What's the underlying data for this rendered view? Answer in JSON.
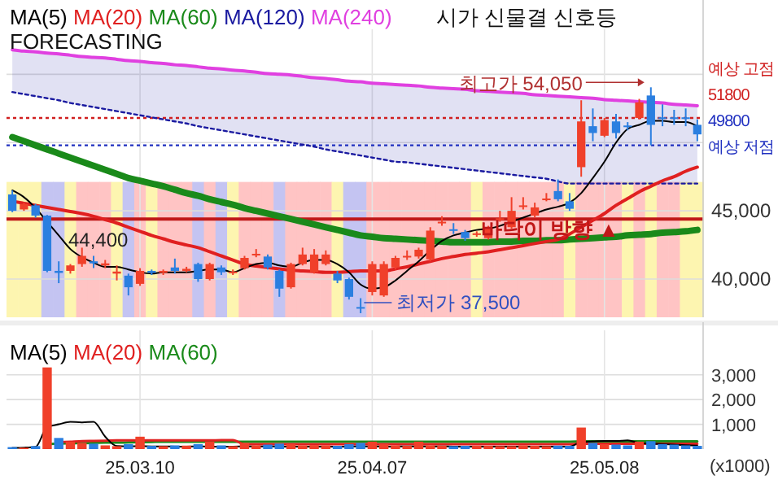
{
  "chart_data": [
    {
      "type": "candlestick",
      "legend": "top",
      "grid": true,
      "tick_labels": "y",
      "categories": [
        null,
        null,
        null,
        null,
        null,
        null,
        null,
        null,
        null,
        null,
        null,
        "25.03.10",
        null,
        null,
        null,
        null,
        null,
        null,
        null,
        null,
        null,
        null,
        null,
        null,
        null,
        null,
        null,
        null,
        null,
        null,
        null,
        "25.04.07",
        null,
        null,
        null,
        null,
        null,
        null,
        null,
        null,
        null,
        null,
        null,
        null,
        null,
        null,
        null,
        null,
        null,
        null,
        null,
        "25.05.08",
        null,
        null,
        null,
        null,
        null,
        null,
        null,
        null
      ],
      "ylim": [
        37200,
        58300
      ],
      "yticks": [
        {
          "value": 40000,
          "label": "40,000"
        },
        {
          "value": 45000,
          "label": "45,000"
        },
        {
          "value": 50000,
          "label": null
        },
        {
          "value": 55000,
          "label": null
        }
      ],
      "ohlc": [
        [
          46200,
          46500,
          44900,
          45000
        ],
        [
          45100,
          45600,
          45000,
          45500
        ],
        [
          45400,
          45500,
          44500,
          44650
        ],
        [
          44650,
          44700,
          40500,
          40600
        ],
        [
          40600,
          41300,
          39700,
          40450
        ],
        [
          40600,
          41100,
          40400,
          41000
        ],
        [
          41100,
          42300,
          40900,
          41700
        ],
        [
          41300,
          41700,
          40800,
          41150
        ],
        [
          41000,
          41400,
          40800,
          41150
        ],
        [
          40400,
          41000,
          39900,
          40550
        ],
        [
          40250,
          40400,
          38800,
          39400
        ],
        [
          39650,
          40800,
          39500,
          40600
        ],
        [
          40600,
          40700,
          40300,
          40450
        ],
        [
          40450,
          40700,
          40300,
          40600
        ],
        [
          40850,
          41500,
          40400,
          40600
        ],
        [
          40600,
          40900,
          40500,
          40750
        ],
        [
          41100,
          41200,
          39800,
          40000
        ],
        [
          40000,
          41200,
          39900,
          41100
        ],
        [
          40850,
          41000,
          40300,
          40500
        ],
        [
          40450,
          40700,
          40300,
          40550
        ],
        [
          40800,
          41700,
          40700,
          41550
        ],
        [
          41750,
          42200,
          41600,
          41850
        ],
        [
          41650,
          41800,
          40700,
          40850
        ],
        [
          40600,
          40700,
          38700,
          39300
        ],
        [
          39400,
          41200,
          39300,
          41100
        ],
        [
          41100,
          42300,
          41000,
          41800
        ],
        [
          40500,
          42200,
          40400,
          41800
        ],
        [
          41100,
          42100,
          41000,
          41800
        ],
        [
          40400,
          40600,
          39700,
          39900
        ],
        [
          40000,
          40100,
          38500,
          38700
        ],
        [
          37950,
          38600,
          37500,
          37850
        ],
        [
          39050,
          41300,
          38800,
          41100
        ],
        [
          38800,
          41300,
          38700,
          41100
        ],
        [
          40850,
          41700,
          40700,
          41550
        ],
        [
          41600,
          42100,
          41400,
          41700
        ],
        [
          41650,
          42300,
          41500,
          42150
        ],
        [
          41450,
          43800,
          41300,
          43550
        ],
        [
          44100,
          44600,
          43900,
          44200
        ],
        [
          43650,
          44100,
          43300,
          43550
        ],
        [
          43450,
          43600,
          42800,
          43000
        ],
        [
          43250,
          43500,
          43100,
          43350
        ],
        [
          43000,
          43900,
          42900,
          43700
        ],
        [
          44350,
          45000,
          44200,
          44450
        ],
        [
          43800,
          46000,
          43700,
          45000
        ],
        [
          45300,
          46000,
          45100,
          45400
        ],
        [
          44650,
          45600,
          44500,
          45250
        ],
        [
          45800,
          46300,
          45700,
          45900
        ],
        [
          46450,
          47300,
          45700,
          45850
        ],
        [
          45700,
          46300,
          45000,
          45150
        ],
        [
          48200,
          53100,
          47500,
          51550
        ],
        [
          51200,
          52500,
          50100,
          50700
        ],
        [
          50500,
          51800,
          50400,
          51650
        ],
        [
          51550,
          52100,
          50300,
          50700
        ],
        [
          51250,
          51500,
          50900,
          51150
        ],
        [
          51800,
          53200,
          51700,
          52950
        ],
        [
          53450,
          54050,
          49800,
          51300
        ],
        [
          51850,
          52800,
          51200,
          51750
        ],
        [
          51850,
          52400,
          51300,
          51750
        ],
        [
          51850,
          52500,
          51200,
          51750
        ],
        [
          51300,
          51700,
          50100,
          50600
        ]
      ],
      "colors": [
        "#2b7fe0",
        "#f0402a",
        "#2b7fe0",
        "#2b7fe0",
        "#2b7fe0",
        "#f0402a",
        "#f0402a",
        "#2b7fe0",
        "#f0402a",
        "#f0402a",
        "#2b7fe0",
        "#f0402a",
        "#2b7fe0",
        "#f0402a",
        "#2b7fe0",
        "#f0402a",
        "#2b7fe0",
        "#f0402a",
        "#2b7fe0",
        "#f0402a",
        "#f0402a",
        "#f0402a",
        "#2b7fe0",
        "#2b7fe0",
        "#f0402a",
        "#f0402a",
        "#f0402a",
        "#f0402a",
        "#2b7fe0",
        "#2b7fe0",
        "#2b7fe0",
        "#f0402a",
        "#f0402a",
        "#f0402a",
        "#f0402a",
        "#f0402a",
        "#f0402a",
        "#f0402a",
        "#2b7fe0",
        "#2b7fe0",
        "#f0402a",
        "#f0402a",
        "#f0402a",
        "#f0402a",
        "#f0402a",
        "#f0402a",
        "#f0402a",
        "#2b7fe0",
        "#2b7fe0",
        "#f0402a",
        "#2b7fe0",
        "#f0402a",
        "#2b7fe0",
        "#2b7fe0",
        "#f0402a",
        "#2b7fe0",
        "#2b7fe0",
        "#2b7fe0",
        "#2b7fe0",
        "#2b7fe0"
      ],
      "series": [
        {
          "name": "MA(5)",
          "type": "line",
          "color": "#000000",
          "values": [
            46500,
            46000,
            45200,
            44200,
            43200,
            42200,
            41600,
            41200,
            40900,
            40900,
            40700,
            40500,
            40400,
            40500,
            40500,
            40500,
            40600,
            40700,
            40700,
            40500,
            40800,
            41100,
            41200,
            41000,
            40900,
            41200,
            41400,
            41400,
            41100,
            40500,
            39600,
            39300,
            39400,
            39900,
            40600,
            41300,
            42100,
            42800,
            43200,
            43400,
            43600,
            43700,
            43900,
            44200,
            44500,
            44800,
            45100,
            45300,
            45600,
            46300,
            47400,
            48600,
            50000,
            51000,
            51300,
            51600,
            51600,
            51500,
            51500,
            51200
          ]
        },
        {
          "name": "MA(20)",
          "type": "line",
          "color": "#e02020",
          "values": [
            45700,
            45550,
            45400,
            45250,
            45100,
            44950,
            44800,
            44600,
            44350,
            44100,
            43800,
            43500,
            43200,
            42950,
            42700,
            42500,
            42300,
            42000,
            41700,
            41400,
            41100,
            40950,
            40850,
            40750,
            40650,
            40600,
            40550,
            40500,
            40500,
            40550,
            40600,
            40600,
            40600,
            40750,
            40900,
            41100,
            41300,
            41500,
            41650,
            41800,
            41900,
            42000,
            42150,
            42300,
            42450,
            42600,
            42750,
            42900,
            43300,
            43800,
            44300,
            44800,
            45400,
            45900,
            46400,
            46800,
            47200,
            47500,
            47900,
            48200
          ]
        },
        {
          "name": "MA(60)",
          "type": "line",
          "color": "#1a8a1a",
          "values": [
            50400,
            50100,
            49800,
            49500,
            49200,
            48900,
            48600,
            48300,
            48000,
            47700,
            47400,
            47200,
            47000,
            46800,
            46550,
            46300,
            46100,
            45850,
            45650,
            45450,
            45200,
            45000,
            44800,
            44600,
            44400,
            44200,
            44000,
            43800,
            43600,
            43400,
            43200,
            43100,
            43000,
            42950,
            42900,
            42850,
            42800,
            42750,
            42700,
            42700,
            42700,
            42700,
            42750,
            42750,
            42800,
            42800,
            42850,
            42850,
            42900,
            42950,
            43000,
            43050,
            43100,
            43200,
            43250,
            43300,
            43400,
            43450,
            43500,
            43600
          ]
        },
        {
          "name": "MA(120)",
          "type": "line",
          "color": "#1a1aa0",
          "line_style": "dotted",
          "values": [
            53700,
            53550,
            53400,
            53250,
            53100,
            52900,
            52750,
            52600,
            52450,
            52300,
            52150,
            52000,
            51850,
            51700,
            51550,
            51400,
            51200,
            51050,
            50900,
            50750,
            50600,
            50450,
            50300,
            50150,
            50000,
            49850,
            49700,
            49500,
            49350,
            49200,
            49050,
            48900,
            48750,
            48600,
            48550,
            48450,
            48350,
            48250,
            48150,
            48050,
            47950,
            47850,
            47750,
            47650,
            47550,
            47450,
            47350,
            47150,
            47000,
            47000,
            47000,
            47000,
            47000,
            47000,
            47000,
            47000,
            47000,
            47000,
            47000,
            47000
          ],
          "lower": [
            53700,
            53550,
            53400,
            53250,
            53100,
            52900,
            52750,
            52600,
            52450,
            52300,
            52150,
            52000,
            51850,
            51700,
            51550,
            51400,
            51200,
            51050,
            50900,
            50750,
            50600,
            50450,
            50300,
            50150,
            50000,
            49850,
            49700,
            49500,
            49350,
            49200,
            49050,
            48900,
            48750,
            48600,
            48550,
            48450,
            48350,
            48250,
            48150,
            48050,
            47950,
            47850,
            47750,
            47650,
            47550,
            47450,
            47350,
            47150,
            47000,
            47000,
            47000,
            47000,
            47000,
            47000,
            47000,
            47000,
            47000,
            47000,
            47000,
            47000
          ],
          "upper": [
            56800,
            56700,
            56650,
            56550,
            56500,
            56400,
            56300,
            56250,
            56200,
            56100,
            56000,
            55950,
            55850,
            55800,
            55700,
            55650,
            55550,
            55450,
            55400,
            55300,
            55250,
            55150,
            55050,
            55000,
            54950,
            54850,
            54750,
            54700,
            54600,
            54500,
            54450,
            54350,
            54300,
            54250,
            54200,
            54150,
            54050,
            54000,
            53950,
            53900,
            53800,
            53750,
            53700,
            53650,
            53600,
            53500,
            53450,
            53400,
            53350,
            53300,
            53250,
            53150,
            53100,
            53050,
            53000,
            52950,
            52900,
            52800,
            52750,
            52700
          ]
        },
        {
          "name": "MA(240)",
          "type": "line",
          "color": "#e040e0",
          "values": [
            56800,
            56700,
            56650,
            56550,
            56500,
            56400,
            56300,
            56250,
            56200,
            56100,
            56000,
            55950,
            55850,
            55800,
            55700,
            55650,
            55550,
            55450,
            55400,
            55300,
            55250,
            55150,
            55050,
            55000,
            54950,
            54850,
            54750,
            54700,
            54600,
            54500,
            54450,
            54350,
            54300,
            54250,
            54200,
            54150,
            54050,
            54000,
            53950,
            53900,
            53800,
            53750,
            53700,
            53650,
            53600,
            53500,
            53450,
            53400,
            53350,
            53300,
            53250,
            53150,
            53100,
            53050,
            53000,
            52950,
            52900,
            52800,
            52750,
            52700
          ]
        }
      ],
      "ref_lines": [
        {
          "axis": "y",
          "value": 51800,
          "label": "예상 고점\n51800",
          "color": "#d02020",
          "line_style": "dotted"
        },
        {
          "axis": "y",
          "value": 49800,
          "label": "49800\n예상 저점",
          "color": "#2030c0",
          "line_style": "dotted"
        },
        {
          "axis": "y",
          "value": 44400,
          "label": "44,400",
          "color": "#c01818",
          "line_style": "solid"
        }
      ],
      "annotations": [
        "시가 신물결 신호등",
        "FORECASTING",
        "바닥이 방향 ▲",
        "최저가 37,500",
        {
          "text": "최고가 54,050",
          "y": 54050
        }
      ]
    },
    {
      "type": "bar",
      "legend": "top left",
      "grid": true,
      "ylabel": "(x1000)",
      "categories": [
        null,
        null,
        null,
        null,
        null,
        null,
        null,
        null,
        null,
        null,
        null,
        "25.03.10",
        null,
        null,
        null,
        null,
        null,
        null,
        null,
        null,
        null,
        null,
        null,
        null,
        null,
        null,
        null,
        null,
        null,
        null,
        null,
        "25.04.07",
        null,
        null,
        null,
        null,
        null,
        null,
        null,
        null,
        null,
        null,
        null,
        null,
        null,
        null,
        null,
        null,
        null,
        null,
        null,
        "25.05.08",
        null,
        null,
        null,
        null,
        null,
        null,
        null,
        null
      ],
      "ylim": [
        0,
        4800
      ],
      "yticks": [
        {
          "value": 1000,
          "label": "1,000"
        },
        {
          "value": 2000,
          "label": "2,000"
        },
        {
          "value": 3000,
          "label": "3,000"
        }
      ],
      "series": [
        {
          "type": "bar",
          "values": [
            80,
            60,
            120,
            3300,
            450,
            300,
            250,
            220,
            150,
            120,
            200,
            500,
            130,
            120,
            150,
            140,
            200,
            300,
            150,
            120,
            250,
            150,
            180,
            220,
            200,
            150,
            160,
            150,
            130,
            200,
            250,
            300,
            200,
            150,
            130,
            300,
            150,
            140,
            120,
            130,
            140,
            130,
            120,
            120,
            150,
            130,
            120,
            140,
            130,
            870,
            250,
            200,
            180,
            150,
            300,
            320,
            200,
            180,
            150,
            130
          ],
          "colors": [
            "#2b7fe0",
            "#f0402a",
            "#2b7fe0",
            "#f0402a",
            "#2b7fe0",
            "#f0402a",
            "#f0402a",
            "#2b7fe0",
            "#f0402a",
            "#f0402a",
            "#2b7fe0",
            "#f0402a",
            "#2b7fe0",
            "#f0402a",
            "#2b7fe0",
            "#f0402a",
            "#2b7fe0",
            "#f0402a",
            "#2b7fe0",
            "#f0402a",
            "#f0402a",
            "#f0402a",
            "#2b7fe0",
            "#2b7fe0",
            "#f0402a",
            "#f0402a",
            "#f0402a",
            "#f0402a",
            "#2b7fe0",
            "#2b7fe0",
            "#2b7fe0",
            "#f0402a",
            "#f0402a",
            "#f0402a",
            "#f0402a",
            "#f0402a",
            "#f0402a",
            "#f0402a",
            "#2b7fe0",
            "#2b7fe0",
            "#f0402a",
            "#f0402a",
            "#f0402a",
            "#f0402a",
            "#f0402a",
            "#f0402a",
            "#f0402a",
            "#2b7fe0",
            "#2b7fe0",
            "#f0402a",
            "#2b7fe0",
            "#f0402a",
            "#2b7fe0",
            "#2b7fe0",
            "#f0402a",
            "#2b7fe0",
            "#2b7fe0",
            "#2b7fe0",
            "#2b7fe0",
            "#2b7fe0"
          ]
        },
        {
          "name": "MA(5)",
          "type": "line",
          "color": "#000000",
          "values": [
            50,
            60,
            90,
            890,
            1000,
            1100,
            1080,
            1100,
            500,
            120,
            110,
            120,
            110,
            110,
            100,
            100,
            110,
            100,
            100,
            100,
            110,
            100,
            110,
            100,
            100,
            100,
            100,
            100,
            100,
            100,
            110,
            110,
            100,
            100,
            110,
            110,
            100,
            110,
            100,
            100,
            100,
            100,
            100,
            100,
            100,
            100,
            100,
            100,
            100,
            290,
            310,
            330,
            330,
            350,
            250,
            220,
            200,
            180,
            160,
            140
          ]
        },
        {
          "name": "MA(20)",
          "type": "line",
          "color": "#e02020",
          "values": [
            null,
            null,
            null,
            null,
            280,
            300,
            320,
            330,
            340,
            350,
            350,
            350,
            350,
            350,
            350,
            350,
            350,
            350,
            360,
            360,
            200,
            200,
            200,
            200,
            200,
            200,
            200,
            200,
            200,
            200,
            200,
            200,
            200,
            200,
            200,
            200,
            200,
            200,
            200,
            200,
            200,
            200,
            200,
            200,
            200,
            200,
            200,
            200,
            200,
            210,
            210,
            210,
            210,
            210,
            210,
            210,
            210,
            210,
            210,
            210
          ]
        },
        {
          "name": "MA(60)",
          "type": "line",
          "color": "#1a8a1a",
          "values": [
            null,
            null,
            null,
            200,
            220,
            230,
            240,
            250,
            260,
            260,
            270,
            280,
            290,
            300,
            300,
            300,
            300,
            300,
            300,
            300,
            300,
            300,
            300,
            300,
            300,
            300,
            300,
            300,
            300,
            300,
            300,
            300,
            300,
            300,
            300,
            300,
            300,
            300,
            300,
            300,
            300,
            300,
            300,
            300,
            300,
            300,
            300,
            300,
            300,
            310,
            310,
            310,
            310,
            310,
            310,
            310,
            310,
            310,
            310,
            310
          ]
        }
      ]
    }
  ]
}
